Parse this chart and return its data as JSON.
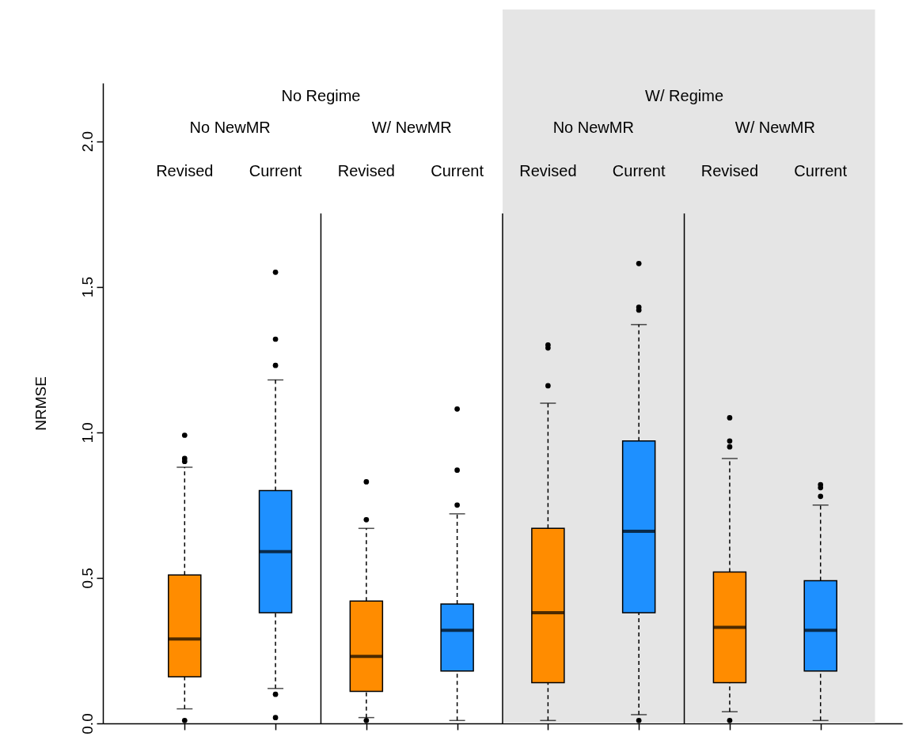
{
  "chart_data": {
    "type": "box",
    "ylabel": "NRMSE",
    "categories": [
      "Revised",
      "Current",
      "Revised",
      "Current",
      "Revised",
      "Current",
      "Revised",
      "Current"
    ],
    "colors": [
      "#ff8c00",
      "#1e90ff",
      "#ff8c00",
      "#1e90ff",
      "#ff8c00",
      "#1e90ff",
      "#ff8c00",
      "#1e90ff"
    ],
    "boxes": [
      {
        "low": 0.05,
        "q1": 0.16,
        "median": 0.29,
        "q3": 0.51,
        "high": 0.88,
        "outliers": [
          0.99,
          0.91,
          0.9,
          0.01
        ]
      },
      {
        "low": 0.12,
        "q1": 0.38,
        "median": 0.59,
        "q3": 0.8,
        "high": 1.18,
        "outliers": [
          1.55,
          1.32,
          1.23,
          0.1,
          0.02
        ]
      },
      {
        "low": 0.02,
        "q1": 0.11,
        "median": 0.23,
        "q3": 0.42,
        "high": 0.67,
        "outliers": [
          0.83,
          0.7,
          0.01
        ]
      },
      {
        "low": 0.01,
        "q1": 0.18,
        "median": 0.32,
        "q3": 0.41,
        "high": 0.72,
        "outliers": [
          1.08,
          0.87,
          0.75
        ]
      },
      {
        "low": 0.01,
        "q1": 0.14,
        "median": 0.38,
        "q3": 0.67,
        "high": 1.1,
        "outliers": [
          1.3,
          1.29,
          1.16
        ]
      },
      {
        "low": 0.03,
        "q1": 0.38,
        "median": 0.66,
        "q3": 0.97,
        "high": 1.37,
        "outliers": [
          1.58,
          1.43,
          1.42,
          0.01
        ]
      },
      {
        "low": 0.04,
        "q1": 0.14,
        "median": 0.33,
        "q3": 0.52,
        "high": 0.91,
        "outliers": [
          1.05,
          0.97,
          0.95,
          0.01
        ]
      },
      {
        "low": 0.01,
        "q1": 0.18,
        "median": 0.32,
        "q3": 0.49,
        "high": 0.75,
        "outliers": [
          0.82,
          0.81,
          0.78
        ]
      }
    ],
    "ylim": [
      0,
      2.2
    ],
    "yticks": [
      {
        "value": 0,
        "label": "0.0"
      },
      0.5,
      {
        "value": 1,
        "label": "1.0"
      },
      1.5,
      {
        "value": 2,
        "label": "2.0"
      }
    ],
    "annotations": [
      "No Regime",
      "W/ Regime",
      "No NewMR",
      "W/ NewMR",
      "No NewMR",
      "W/ NewMR"
    ]
  }
}
